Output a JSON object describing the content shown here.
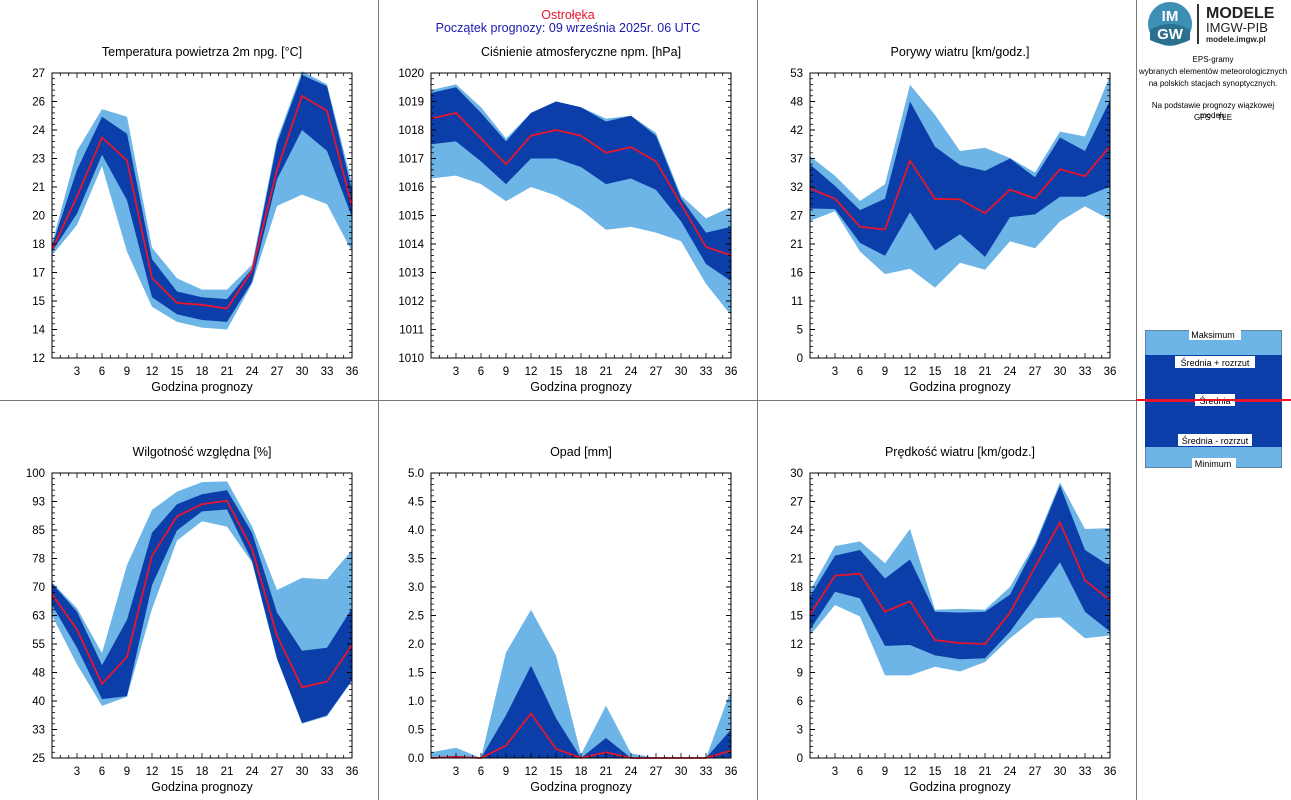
{
  "header": {
    "station": "Ostrołęka",
    "forecast_start": "Początek prognozy: 09 września 2025r. 06 UTC"
  },
  "colors": {
    "minmax": "#6cb5e6",
    "spread": "#0b3ea8",
    "mean": "#e8152c",
    "station": "#e8152c",
    "forecast_start": "#1a1ab0"
  },
  "logo": {
    "text_main": "MODELE",
    "text_sub": "IMGW-PIB",
    "url": "modele.imgw.pl",
    "badge_top": "IM",
    "badge_bottom": "GW"
  },
  "side": {
    "line1": "EPS-gramy",
    "line2": "wybranych elementów meteorologicznych",
    "line3": "na polskich stacjach  synoptycznych.",
    "line4": "Na podstawie prognozy wiązkowej modelu",
    "line5": "GFS - TLE"
  },
  "legend": {
    "max": "Maksimum",
    "mean_plus": "Średnia + rozrzut",
    "mean": "Średnia",
    "mean_minus": "Średnia - rozrzut",
    "min": "Minimum"
  },
  "chart_data": [
    {
      "type": "area",
      "title": "Temperatura powietrza 2m npg. [°C]",
      "xlabel": "Godzina prognozy",
      "x": [
        0,
        3,
        6,
        9,
        12,
        15,
        18,
        21,
        24,
        27,
        30,
        33,
        36
      ],
      "xticks": [
        3,
        6,
        9,
        12,
        15,
        18,
        21,
        24,
        27,
        30,
        33,
        36
      ],
      "ylim": [
        12,
        27
      ],
      "yticks": [
        "12",
        "14",
        "15",
        "17",
        "18",
        "20",
        "21",
        "23",
        "24",
        "26",
        "27"
      ],
      "max": [
        18.0,
        22.9,
        25.1,
        24.7,
        17.8,
        16.2,
        15.6,
        15.6,
        16.9,
        23.5,
        27.1,
        26.4,
        21.2
      ],
      "mean_plus": [
        17.9,
        21.9,
        24.7,
        23.8,
        17.2,
        15.5,
        15.2,
        15.1,
        16.7,
        23.3,
        26.9,
        26.3,
        20.8
      ],
      "mean": [
        17.7,
        20.5,
        23.6,
        22.4,
        16.2,
        14.9,
        14.8,
        14.6,
        16.6,
        21.9,
        25.8,
        25.0,
        20.0
      ],
      "mean_minus": [
        17.6,
        19.6,
        22.7,
        20.3,
        15.2,
        14.3,
        14.0,
        13.9,
        16.0,
        21.4,
        24.0,
        22.9,
        19.4
      ],
      "min": [
        17.4,
        19.0,
        22.1,
        17.6,
        14.7,
        13.9,
        13.6,
        13.5,
        15.9,
        20.0,
        20.6,
        20.1,
        17.6
      ]
    },
    {
      "type": "area",
      "title": "Ciśnienie atmosferyczne npm. [hPa]",
      "xlabel": "Godzina prognozy",
      "x": [
        0,
        3,
        6,
        9,
        12,
        15,
        18,
        21,
        24,
        27,
        30,
        33,
        36
      ],
      "xticks": [
        3,
        6,
        9,
        12,
        15,
        18,
        21,
        24,
        27,
        30,
        33,
        36
      ],
      "ylim": [
        1010,
        1020
      ],
      "yticks": [
        "1010",
        "1011",
        "1012",
        "1013",
        "1014",
        "1015",
        "1016",
        "1017",
        "1018",
        "1019",
        "1020"
      ],
      "max": [
        1019.4,
        1019.6,
        1018.8,
        1017.7,
        1018.6,
        1019.0,
        1018.8,
        1018.4,
        1018.5,
        1017.9,
        1015.7,
        1014.9,
        1015.3
      ],
      "mean_plus": [
        1019.3,
        1019.5,
        1018.6,
        1017.6,
        1018.6,
        1019.0,
        1018.8,
        1018.3,
        1018.5,
        1017.8,
        1015.6,
        1014.4,
        1014.6
      ],
      "mean": [
        1018.4,
        1018.6,
        1017.7,
        1016.8,
        1017.8,
        1018.0,
        1017.8,
        1017.2,
        1017.4,
        1016.9,
        1015.4,
        1013.9,
        1013.6
      ],
      "mean_minus": [
        1017.5,
        1017.6,
        1016.9,
        1016.1,
        1017.0,
        1017.0,
        1016.7,
        1016.1,
        1016.3,
        1015.9,
        1014.8,
        1013.3,
        1012.7
      ],
      "min": [
        1016.3,
        1016.4,
        1016.1,
        1015.5,
        1016.0,
        1015.7,
        1015.2,
        1014.5,
        1014.6,
        1014.4,
        1014.1,
        1012.6,
        1011.5
      ]
    },
    {
      "type": "area",
      "title": "Porywy wiatru [km/godz.]",
      "xlabel": "Godzina prognozy",
      "x": [
        0,
        3,
        6,
        9,
        12,
        15,
        18,
        21,
        24,
        27,
        30,
        33,
        36
      ],
      "xticks": [
        3,
        6,
        9,
        12,
        15,
        18,
        21,
        24,
        27,
        30,
        33,
        36
      ],
      "ylim": [
        0,
        53
      ],
      "yticks": [
        "0",
        "5",
        "11",
        "16",
        "21",
        "27",
        "32",
        "37",
        "42",
        "48",
        "53"
      ],
      "max": [
        37.5,
        33.9,
        29.2,
        32.3,
        50.8,
        45.2,
        38.5,
        39.1,
        37.2,
        34.5,
        42.1,
        41.2,
        52.5
      ],
      "mean_plus": [
        36.0,
        32.0,
        27.5,
        29.6,
        47.7,
        39.3,
        35.9,
        34.8,
        37.1,
        33.6,
        41.0,
        38.5,
        47.9
      ],
      "mean": [
        31.5,
        29.6,
        24.4,
        23.9,
        36.7,
        29.6,
        29.5,
        26.9,
        31.3,
        29.7,
        35.1,
        33.8,
        39.4
      ],
      "mean_minus": [
        27.8,
        27.7,
        21.4,
        19.0,
        27.1,
        20.0,
        23.0,
        18.8,
        26.2,
        26.7,
        30.0,
        30.0,
        31.9
      ],
      "min": [
        25.5,
        27.3,
        19.8,
        15.6,
        16.6,
        13.1,
        17.7,
        16.4,
        21.7,
        20.4,
        25.4,
        28.2,
        25.7
      ]
    },
    {
      "type": "area",
      "title": "Wilgotność względna [%]",
      "xlabel": "Godzina prognozy",
      "x": [
        0,
        3,
        6,
        9,
        12,
        15,
        18,
        21,
        24,
        27,
        30,
        33,
        36
      ],
      "xticks": [
        3,
        6,
        9,
        12,
        15,
        18,
        21,
        24,
        27,
        30,
        33,
        36
      ],
      "ylim": [
        25,
        100
      ],
      "yticks": [
        "25",
        "33",
        "40",
        "48",
        "55",
        "63",
        "70",
        "78",
        "85",
        "93",
        "100"
      ],
      "max": [
        71.2,
        64.4,
        52.6,
        75.8,
        90.3,
        95.1,
        97.6,
        97.8,
        86.0,
        69.2,
        72.4,
        72.0,
        79.7
      ],
      "mean_plus": [
        71.0,
        63.5,
        49.4,
        61.4,
        84.3,
        91.8,
        94.4,
        95.5,
        84.3,
        63.3,
        53.2,
        54.0,
        64.4
      ],
      "mean": [
        68.1,
        58.8,
        44.5,
        51.6,
        78.2,
        88.6,
        91.8,
        92.7,
        80.0,
        57.2,
        43.6,
        45.1,
        54.7
      ],
      "mean_minus": [
        65.3,
        54.0,
        40.5,
        41.3,
        70.5,
        84.9,
        89.9,
        90.4,
        76.9,
        51.2,
        34.2,
        36.2,
        45.5
      ],
      "min": [
        62.5,
        49.6,
        38.7,
        41.1,
        64.2,
        82.2,
        87.3,
        85.9,
        76.5,
        51.0,
        34.0,
        36.0,
        45.3
      ]
    },
    {
      "type": "area",
      "title": "Opad [mm]",
      "xlabel": "Godzina prognozy",
      "x": [
        0,
        3,
        6,
        9,
        12,
        15,
        18,
        21,
        24,
        27,
        30,
        33,
        36
      ],
      "xticks": [
        3,
        6,
        9,
        12,
        15,
        18,
        21,
        24,
        27,
        30,
        33,
        36
      ],
      "ylim": [
        0,
        5
      ],
      "yticks": [
        "0.0",
        "0.5",
        "1.0",
        "1.5",
        "2.0",
        "2.5",
        "3.0",
        "3.5",
        "4.0",
        "4.5",
        "5.0"
      ],
      "max": [
        0.1,
        0.18,
        0.0,
        1.85,
        2.6,
        1.8,
        0.06,
        0.92,
        0.08,
        0.0,
        0.0,
        0.0,
        1.2
      ],
      "mean_plus": [
        0.0,
        0.04,
        0.0,
        0.75,
        1.62,
        0.7,
        0.0,
        0.35,
        0.0,
        0.0,
        0.0,
        0.0,
        0.5
      ],
      "mean": [
        0.0,
        0.02,
        0.0,
        0.22,
        0.78,
        0.16,
        0.0,
        0.1,
        0.0,
        0.0,
        0.0,
        0.0,
        0.13
      ],
      "mean_minus": [
        0.0,
        0.0,
        0.0,
        0.0,
        0.0,
        0.0,
        0.0,
        0.0,
        0.0,
        0.0,
        0.0,
        0.0,
        0.0
      ],
      "min": [
        0.0,
        0.0,
        0.0,
        0.0,
        0.0,
        0.0,
        0.0,
        0.0,
        0.0,
        0.0,
        0.0,
        0.0,
        0.0
      ]
    },
    {
      "type": "area",
      "title": "Prędkość wiatru [km/godz.]",
      "xlabel": "Godzina prognozy",
      "x": [
        0,
        3,
        6,
        9,
        12,
        15,
        18,
        21,
        24,
        27,
        30,
        33,
        36
      ],
      "xticks": [
        3,
        6,
        9,
        12,
        15,
        18,
        21,
        24,
        27,
        30,
        33,
        36
      ],
      "ylim": [
        0,
        30
      ],
      "yticks": [
        "0",
        "3",
        "6",
        "9",
        "12",
        "15",
        "18",
        "21",
        "24",
        "27",
        "30"
      ],
      "max": [
        17.6,
        22.3,
        22.8,
        20.5,
        24.1,
        15.6,
        15.7,
        15.6,
        18.0,
        22.6,
        29.0,
        24.1,
        24.2
      ],
      "mean_plus": [
        17.0,
        21.3,
        21.9,
        18.9,
        20.9,
        15.4,
        15.3,
        15.4,
        17.2,
        22.3,
        28.7,
        21.9,
        20.2
      ],
      "mean": [
        15.1,
        19.2,
        19.4,
        15.4,
        16.5,
        12.4,
        12.1,
        12.0,
        15.3,
        20.1,
        24.8,
        18.7,
        16.6
      ],
      "mean_minus": [
        13.5,
        17.5,
        16.8,
        11.8,
        11.9,
        10.8,
        10.4,
        10.5,
        13.3,
        16.9,
        20.6,
        15.4,
        13.3
      ],
      "min": [
        12.9,
        16.1,
        14.9,
        8.7,
        8.7,
        9.6,
        9.1,
        10.1,
        12.6,
        14.7,
        14.8,
        12.6,
        12.9
      ]
    }
  ]
}
